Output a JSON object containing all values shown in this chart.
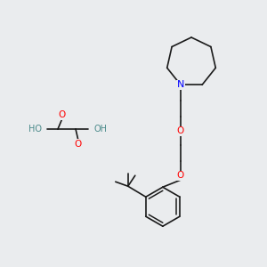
{
  "background_color": "#eaecee",
  "bond_color": "#1a1a1a",
  "atom_colors": {
    "O": "#ff0000",
    "N": "#0000ff",
    "H": "#4a8a8a",
    "C": "#1a1a1a"
  },
  "font_size": 7.5,
  "bond_width": 1.2
}
